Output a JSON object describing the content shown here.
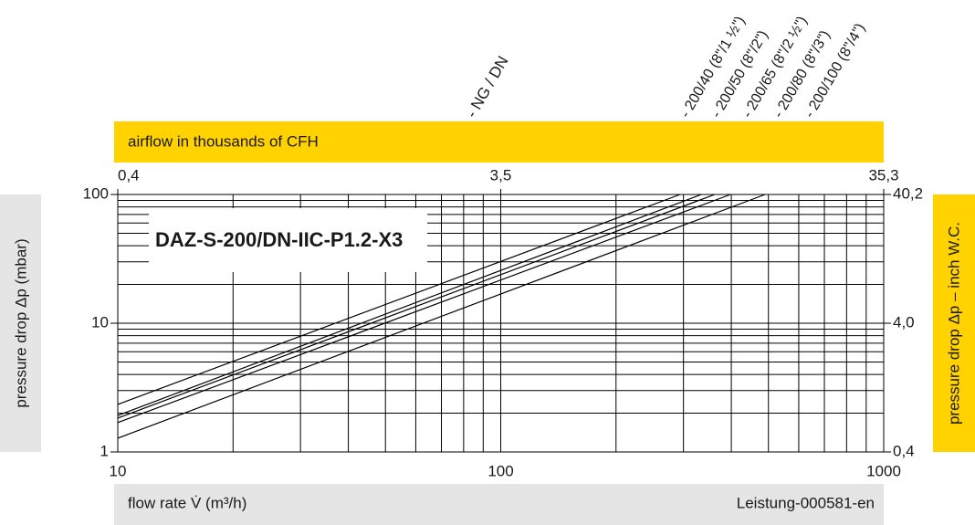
{
  "chart_data": {
    "type": "line",
    "title": "DAZ-S-200/DN-IIC-P1.2-X3",
    "x2_label": "airflow in thousands of CFH",
    "ylabel": "pressure drop Δp (mbar)",
    "y2label": "pressure drop Δp – inch W.C.",
    "xlabel": "flow rate V̇ (m³/h)",
    "footnote": "Leistung-000581-en",
    "legend_title": "- NG / DN",
    "xscale": "log",
    "yscale": "log",
    "minor_grid": true,
    "xlim": [
      10,
      1000
    ],
    "xticks": [
      10,
      100,
      1000
    ],
    "ylim": [
      1,
      100
    ],
    "yticks": [
      1,
      10,
      100
    ],
    "x2lim": [
      0.353,
      35.3
    ],
    "x2ticks": [
      {
        "value": 0.353,
        "label": "0,4"
      },
      {
        "value": 3.53,
        "label": "3,5"
      },
      {
        "value": 35.3,
        "label": "35,3"
      }
    ],
    "y2lim": [
      0.402,
      40.2
    ],
    "y2ticks": [
      {
        "value": 0.402,
        "label": "0,4"
      },
      {
        "value": 4.02,
        "label": "4,0"
      },
      {
        "value": 40.2,
        "label": "40,2"
      }
    ],
    "series": [
      {
        "name": "- 200/40 (8\"/1 ½\")",
        "color": "#000000",
        "x": [
          10,
          294
        ],
        "values": [
          2.34,
          100
        ]
      },
      {
        "name": "- 200/50 (8\"/2\")",
        "color": "#000000",
        "x": [
          10,
          334
        ],
        "values": [
          1.92,
          100
        ]
      },
      {
        "name": "- 200/65 (8\"/2 ½\")",
        "color": "#000000",
        "x": [
          10,
          362
        ],
        "values": [
          1.83,
          100
        ]
      },
      {
        "name": "- 200/80 (8\"/3\")",
        "color": "#000000",
        "x": [
          10,
          398
        ],
        "values": [
          1.69,
          100
        ]
      },
      {
        "name": "- 200/100 (8\"/4\")",
        "color": "#000000",
        "x": [
          10,
          490
        ],
        "values": [
          1.28,
          100
        ]
      }
    ]
  }
}
